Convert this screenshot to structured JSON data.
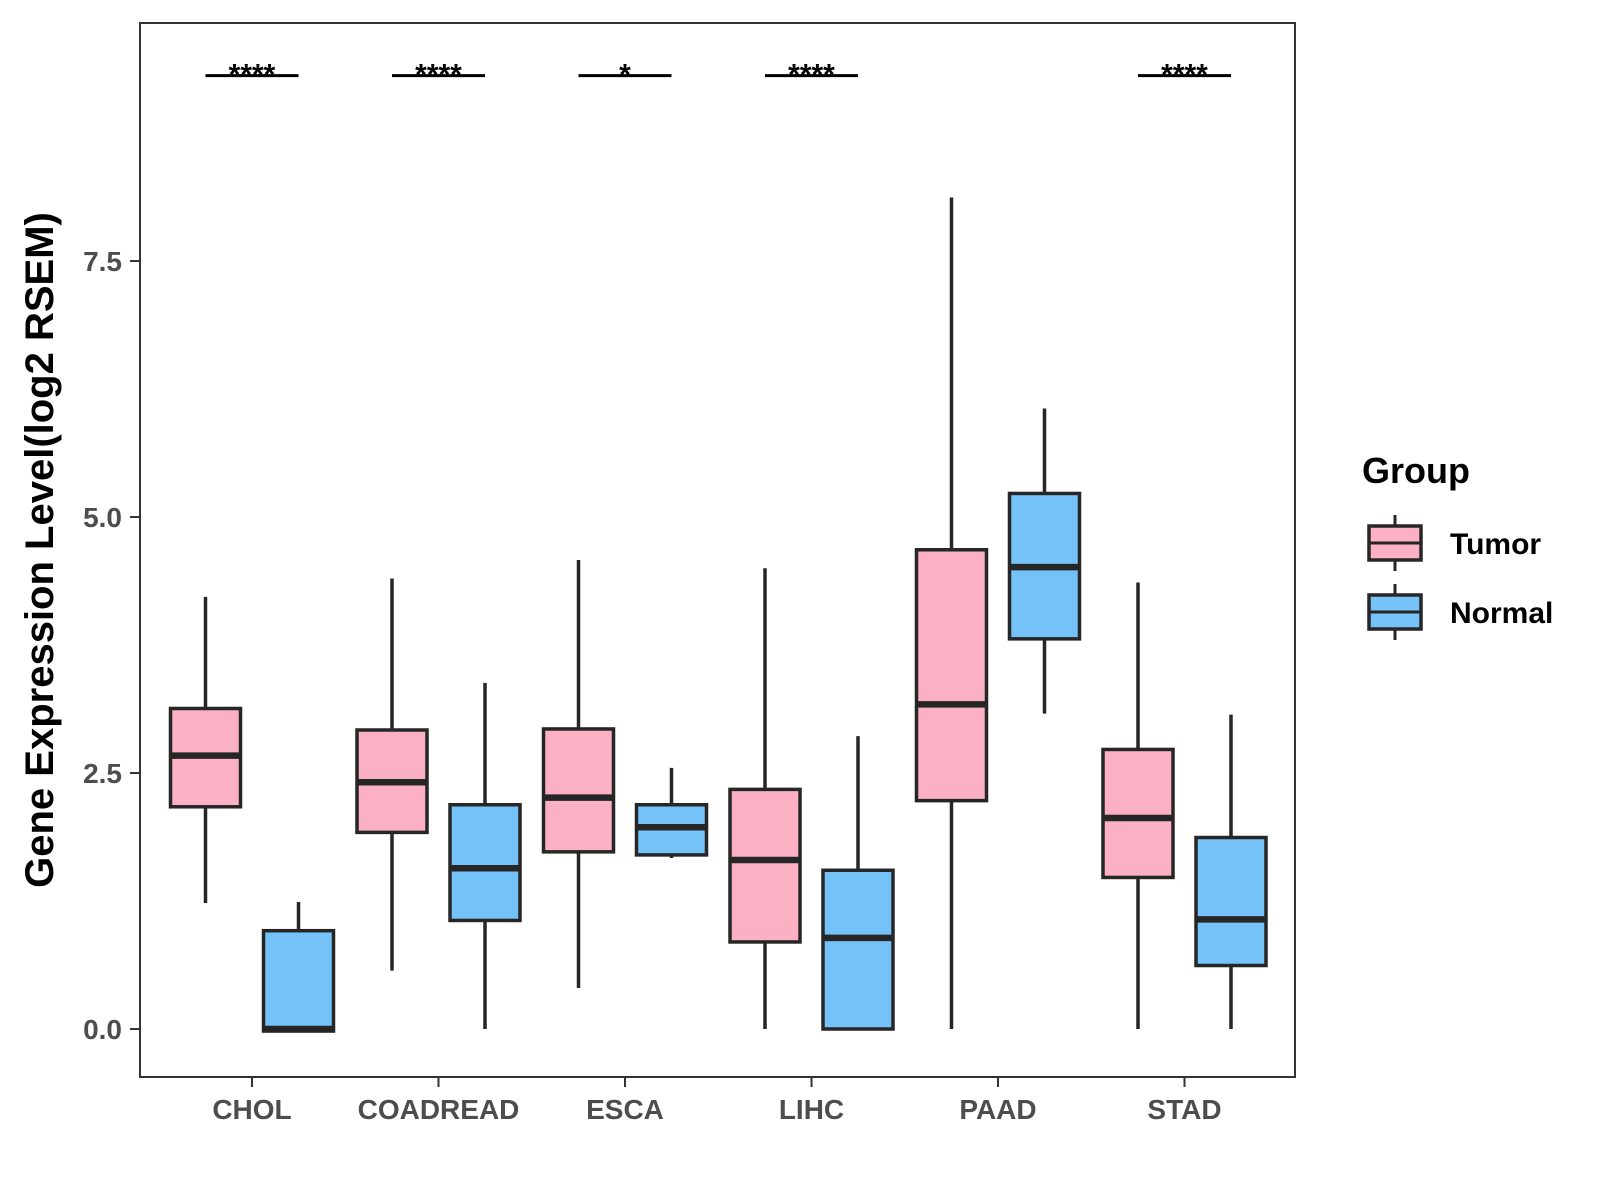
{
  "chart_data": {
    "type": "boxplot",
    "title": "",
    "xlabel": "",
    "ylabel": "Gene Expression Level(log2 RSEM)",
    "ylim": [
      -0.45,
      9.8
    ],
    "yticks": [
      0.0,
      2.5,
      5.0,
      7.5
    ],
    "ytick_labels": [
      "0.0",
      "2.5",
      "5.0",
      "7.5"
    ],
    "grid": false,
    "categories": [
      "CHOL",
      "COADREAD",
      "ESCA",
      "LIHC",
      "PAAD",
      "STAD"
    ],
    "legend": {
      "title": "Group",
      "position": "right",
      "entries": [
        {
          "label": "Tumor",
          "color": "#FBB0C3"
        },
        {
          "label": "Normal",
          "color": "#74C2F8"
        }
      ]
    },
    "series": [
      {
        "name": "Tumor",
        "color": "#FBB0C3",
        "boxes": [
          {
            "min": 1.23,
            "q1": 2.17,
            "median": 2.67,
            "q3": 3.13,
            "max": 4.22
          },
          {
            "min": 0.57,
            "q1": 1.92,
            "median": 2.41,
            "q3": 2.92,
            "max": 4.4
          },
          {
            "min": 0.4,
            "q1": 1.73,
            "median": 2.26,
            "q3": 2.93,
            "max": 4.58
          },
          {
            "min": 0.0,
            "q1": 0.85,
            "median": 1.65,
            "q3": 2.34,
            "max": 4.5
          },
          {
            "min": 0.0,
            "q1": 2.23,
            "median": 3.17,
            "q3": 4.68,
            "max": 8.12
          },
          {
            "min": 0.0,
            "q1": 1.48,
            "median": 2.06,
            "q3": 2.73,
            "max": 4.36
          }
        ]
      },
      {
        "name": "Normal",
        "color": "#74C2F8",
        "boxes": [
          {
            "min": -0.02,
            "q1": -0.02,
            "median": 0.0,
            "q3": 0.96,
            "max": 1.24
          },
          {
            "min": 0.0,
            "q1": 1.06,
            "median": 1.57,
            "q3": 2.19,
            "max": 3.38
          },
          {
            "min": 1.67,
            "q1": 1.7,
            "median": 1.97,
            "q3": 2.19,
            "max": 2.55
          },
          {
            "min": 0.0,
            "q1": 0.0,
            "median": 0.89,
            "q3": 1.55,
            "max": 2.86
          },
          {
            "min": 3.08,
            "q1": 3.81,
            "median": 4.51,
            "q3": 5.23,
            "max": 6.06
          },
          {
            "min": 0.0,
            "q1": 0.62,
            "median": 1.07,
            "q3": 1.87,
            "max": 3.07
          }
        ]
      }
    ],
    "significance": [
      "****",
      "****",
      "*",
      "****",
      "",
      "****"
    ],
    "significance_level": 9.31
  }
}
